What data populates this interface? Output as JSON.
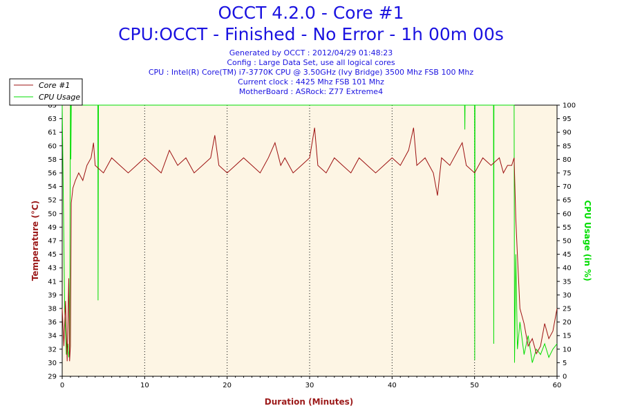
{
  "header": {
    "title": "OCCT 4.2.0 - Core #1",
    "subtitle": "CPU:OCCT - Finished - No Error - 1h 00m 00s",
    "info": [
      "Generated by OCCT : 2012/04/29 01:48:23",
      "Config : Large Data Set, use all logical cores",
      "CPU : Intel(R) Core(TM) i7-3770K CPU @ 3.50GHz (Ivy Bridge) 3500 Mhz FSB 100 Mhz",
      "Current clock : 4425 Mhz FSB 101 Mhz",
      "MotherBoard : ASRock: Z77 Extreme4"
    ]
  },
  "colors": {
    "temperature": "#9c1010",
    "cpu_usage": "#00dd00",
    "plot_bg": "#fdf5e4",
    "title": "#1a12e0",
    "axis_label": "#9c1a1a"
  },
  "chart_data": {
    "type": "line",
    "xlabel": "Duration (Minutes)",
    "ylabel": "Temperature (°C)",
    "y2label": "CPU Usage (in %)",
    "xlim": [
      0,
      60
    ],
    "ylim": [
      29,
      65
    ],
    "y2lim": [
      0,
      100
    ],
    "x_ticks": [
      "0",
      "10",
      "20",
      "30",
      "40",
      "50",
      "60"
    ],
    "y_ticks": [
      "29",
      "30",
      "32",
      "34",
      "36",
      "38",
      "39",
      "41",
      "43",
      "45",
      "47",
      "49",
      "50",
      "52",
      "54",
      "56",
      "58",
      "60",
      "61",
      "63",
      "65"
    ],
    "y2_ticks": [
      "0",
      "5",
      "10",
      "15",
      "20",
      "25",
      "30",
      "35",
      "40",
      "45",
      "50",
      "55",
      "60",
      "65",
      "70",
      "75",
      "80",
      "85",
      "90",
      "95",
      "100"
    ],
    "grid": true,
    "legend_position": "top-left",
    "series": [
      {
        "name": "Core #1",
        "axis": "left",
        "x": [
          0,
          0.2,
          0.4,
          0.6,
          0.8,
          0.9,
          1.0,
          1.1,
          1.3,
          1.6,
          2.0,
          2.5,
          3.0,
          3.5,
          3.8,
          4.0,
          5,
          6,
          7,
          8,
          9,
          10,
          11,
          12,
          13,
          14,
          15,
          16,
          17,
          18,
          18.5,
          19,
          20,
          21,
          22,
          23,
          24,
          25,
          25.8,
          26.5,
          27,
          28,
          29,
          30,
          30.6,
          31,
          32,
          33,
          34,
          35,
          36,
          37,
          38,
          39,
          40,
          41,
          42,
          42.6,
          43,
          44,
          45,
          45.5,
          46,
          47,
          48,
          48.5,
          49,
          50,
          51,
          52,
          53,
          53.5,
          54,
          54.5,
          54.8,
          55.0,
          55.2,
          55.5,
          56,
          56.5,
          57,
          57.5,
          58,
          58.5,
          59,
          59.5,
          60
        ],
        "y": [
          38,
          33,
          39,
          31,
          42,
          31,
          33,
          52,
          54,
          55,
          56,
          55,
          57,
          58,
          60,
          57,
          56,
          58,
          57,
          56,
          57,
          58,
          57,
          56,
          59,
          57,
          58,
          56,
          57,
          58,
          61,
          57,
          56,
          57,
          58,
          57,
          56,
          58,
          60,
          57,
          58,
          56,
          57,
          58,
          62,
          57,
          56,
          58,
          57,
          56,
          58,
          57,
          56,
          57,
          58,
          57,
          59,
          62,
          57,
          58,
          56,
          53,
          58,
          57,
          59,
          60,
          57,
          56,
          58,
          57,
          58,
          56,
          57,
          57,
          58,
          50,
          45,
          38,
          36,
          33,
          34,
          32,
          33,
          36,
          34,
          35,
          38
        ]
      },
      {
        "name": "CPU Usage",
        "axis": "right",
        "x": [
          0,
          0.3,
          0.5,
          0.7,
          0.8,
          0.9,
          1.0,
          1.02,
          1.05,
          1.1,
          1.2,
          4.3,
          4.32,
          4.35,
          4.4,
          4.5,
          6,
          48.8,
          48.82,
          48.85,
          48.9,
          50.0,
          50.02,
          50.05,
          50.1,
          52.3,
          52.32,
          52.35,
          52.4,
          54.8,
          54.85,
          55.0,
          55.2,
          55.5,
          56,
          56.5,
          57,
          57.5,
          58,
          58.5,
          59,
          59.5,
          60
        ],
        "y": [
          100,
          25,
          8,
          12,
          7,
          10,
          100,
          100,
          80,
          100,
          100,
          100,
          100,
          28,
          100,
          100,
          100,
          100,
          91,
          100,
          100,
          100,
          6,
          100,
          100,
          100,
          12,
          100,
          100,
          100,
          5,
          45,
          10,
          20,
          8,
          15,
          5,
          10,
          8,
          12,
          7,
          10,
          12
        ]
      }
    ]
  }
}
